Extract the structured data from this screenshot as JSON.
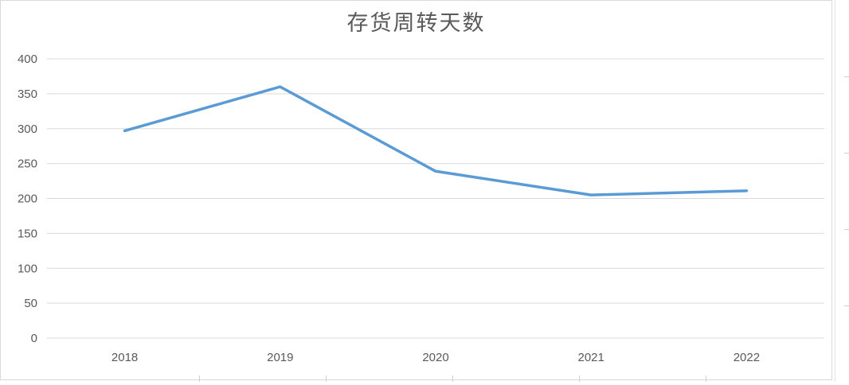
{
  "chart_data": {
    "type": "line",
    "title": "存货周转天数",
    "categories": [
      "2018",
      "2019",
      "2020",
      "2021",
      "2022"
    ],
    "values": [
      297,
      360,
      239,
      205,
      211
    ],
    "series": [
      {
        "name": "存货周转天数",
        "values": [
          297,
          360,
          239,
          205,
          211
        ]
      }
    ],
    "xlabel": "",
    "ylabel": "",
    "ylim": [
      0,
      400
    ],
    "yticks": [
      0,
      50,
      100,
      150,
      200,
      250,
      300,
      350,
      400
    ],
    "grid": "horizontal",
    "legend": "none",
    "line_color": "#5b9bd5",
    "grid_color": "#d9d9d9",
    "axis_text_color": "#595959",
    "title_color": "#595959",
    "background_color": "#ffffff"
  }
}
